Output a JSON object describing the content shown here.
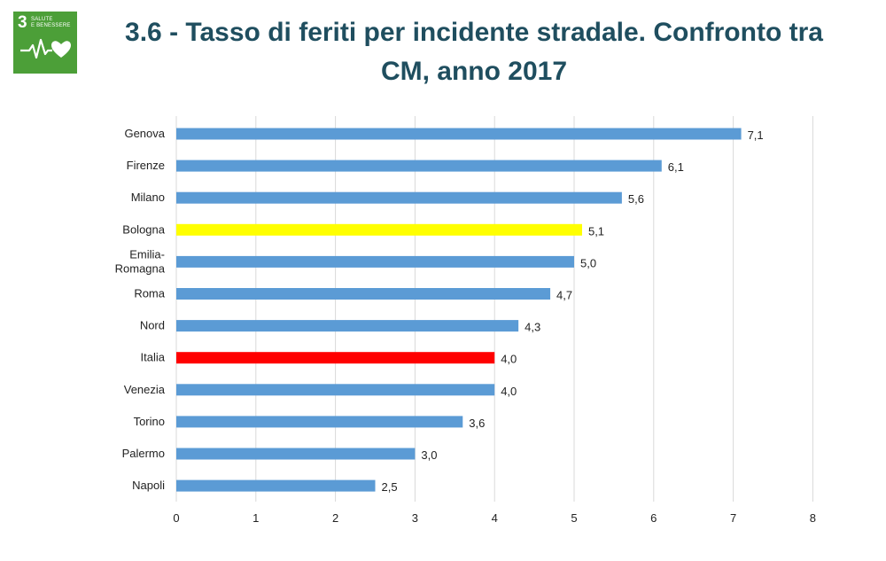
{
  "badge": {
    "number": "3",
    "text_line1": "SALUTE",
    "text_line2": "E BENESSERE",
    "icon": "heartbeat-heart-icon"
  },
  "title": {
    "line1": "3.6 - Tasso di feriti per incidente stradale. Confronto tra",
    "line2": "CM, anno 2017"
  },
  "colors": {
    "default_bar": "#5b9bd5",
    "highlight_bologna": "#ffff00",
    "highlight_italia": "#ff0000",
    "grid": "#d9d9d9",
    "title": "#1f4e5f",
    "badge_green": "#4c9f38"
  },
  "chart_data": {
    "type": "bar",
    "orientation": "horizontal",
    "categories": [
      "Genova",
      "Firenze",
      "Milano",
      "Bologna",
      "Emilia-\nRomagna",
      "Roma",
      "Nord",
      "Italia",
      "Venezia",
      "Torino",
      "Palermo",
      "Napoli"
    ],
    "values": [
      7.1,
      6.1,
      5.6,
      5.1,
      5.0,
      4.7,
      4.3,
      4.0,
      4.0,
      3.6,
      3.0,
      2.5
    ],
    "value_labels": [
      "7,1",
      "6,1",
      "5,6",
      "5,1",
      "5,0",
      "4,7",
      "4,3",
      "4,0",
      "4,0",
      "3,6",
      "3,0",
      "2,5"
    ],
    "bar_colors": [
      "#5b9bd5",
      "#5b9bd5",
      "#5b9bd5",
      "#ffff00",
      "#5b9bd5",
      "#5b9bd5",
      "#5b9bd5",
      "#ff0000",
      "#5b9bd5",
      "#5b9bd5",
      "#5b9bd5",
      "#5b9bd5"
    ],
    "xlim": [
      0,
      8
    ],
    "xticks": [
      "0",
      "1",
      "2",
      "3",
      "4",
      "5",
      "6",
      "7",
      "8"
    ],
    "grid": "vertical",
    "legend": "none"
  }
}
